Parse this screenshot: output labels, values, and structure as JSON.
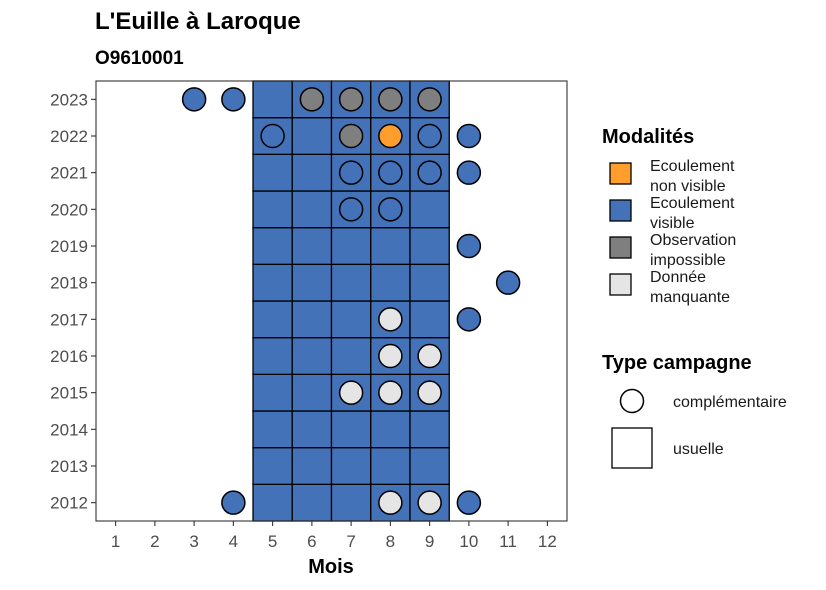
{
  "chart_data": {
    "type": "heatmap",
    "title": "L'Euille à Laroque",
    "subtitle": "O9610001",
    "xlabel": "Mois",
    "ylabel": "",
    "x_ticks": [
      1,
      2,
      3,
      4,
      5,
      6,
      7,
      8,
      9,
      10,
      11,
      12
    ],
    "y_ticks": [
      2012,
      2013,
      2014,
      2015,
      2016,
      2017,
      2018,
      2019,
      2020,
      2021,
      2022,
      2023
    ],
    "xlim": [
      0.5,
      12.5
    ],
    "ylim": [
      2011.5,
      2023.5
    ],
    "grid": false,
    "legend_position": "right",
    "modalites": {
      "title": "Modalités",
      "entries": [
        {
          "key": "ENV",
          "label_line1": "Ecoulement",
          "label_line2": "non visible",
          "color": "#FF9E2C"
        },
        {
          "key": "EV",
          "label_line1": "Ecoulement",
          "label_line2": "visible",
          "color": "#4472B8"
        },
        {
          "key": "OI",
          "label_line1": "Observation",
          "label_line2": "impossible",
          "color": "#7F7F7F"
        },
        {
          "key": "DM",
          "label_line1": "Donnée",
          "label_line2": "manquante",
          "color": "#E5E5E5"
        }
      ]
    },
    "campagne": {
      "title": "Type campagne",
      "entries": [
        {
          "key": "complementaire",
          "label": "complémentaire",
          "shape": "circle"
        },
        {
          "key": "usuelle",
          "label": "usuelle",
          "shape": "square"
        }
      ]
    },
    "usuelle": {
      "months": [
        5,
        6,
        7,
        8,
        9
      ],
      "years": [
        2012,
        2013,
        2014,
        2015,
        2016,
        2017,
        2018,
        2019,
        2020,
        2021,
        2022,
        2023
      ],
      "modalite": "EV"
    },
    "complementaire": [
      {
        "year": 2023,
        "month": 3,
        "modalite": "EV"
      },
      {
        "year": 2023,
        "month": 4,
        "modalite": "EV"
      },
      {
        "year": 2023,
        "month": 6,
        "modalite": "OI"
      },
      {
        "year": 2023,
        "month": 7,
        "modalite": "OI"
      },
      {
        "year": 2023,
        "month": 8,
        "modalite": "OI"
      },
      {
        "year": 2023,
        "month": 9,
        "modalite": "OI"
      },
      {
        "year": 2022,
        "month": 5,
        "modalite": "EV"
      },
      {
        "year": 2022,
        "month": 7,
        "modalite": "OI"
      },
      {
        "year": 2022,
        "month": 8,
        "modalite": "ENV"
      },
      {
        "year": 2022,
        "month": 9,
        "modalite": "EV"
      },
      {
        "year": 2022,
        "month": 10,
        "modalite": "EV"
      },
      {
        "year": 2021,
        "month": 7,
        "modalite": "EV"
      },
      {
        "year": 2021,
        "month": 8,
        "modalite": "EV"
      },
      {
        "year": 2021,
        "month": 9,
        "modalite": "EV"
      },
      {
        "year": 2021,
        "month": 10,
        "modalite": "EV"
      },
      {
        "year": 2020,
        "month": 7,
        "modalite": "EV"
      },
      {
        "year": 2020,
        "month": 8,
        "modalite": "EV"
      },
      {
        "year": 2019,
        "month": 10,
        "modalite": "EV"
      },
      {
        "year": 2018,
        "month": 11,
        "modalite": "EV"
      },
      {
        "year": 2017,
        "month": 8,
        "modalite": "DM"
      },
      {
        "year": 2017,
        "month": 10,
        "modalite": "EV"
      },
      {
        "year": 2016,
        "month": 8,
        "modalite": "DM"
      },
      {
        "year": 2016,
        "month": 9,
        "modalite": "DM"
      },
      {
        "year": 2015,
        "month": 7,
        "modalite": "DM"
      },
      {
        "year": 2015,
        "month": 8,
        "modalite": "DM"
      },
      {
        "year": 2015,
        "month": 9,
        "modalite": "DM"
      },
      {
        "year": 2012,
        "month": 4,
        "modalite": "EV"
      },
      {
        "year": 2012,
        "month": 8,
        "modalite": "DM"
      },
      {
        "year": 2012,
        "month": 9,
        "modalite": "DM"
      },
      {
        "year": 2012,
        "month": 10,
        "modalite": "EV"
      }
    ]
  }
}
